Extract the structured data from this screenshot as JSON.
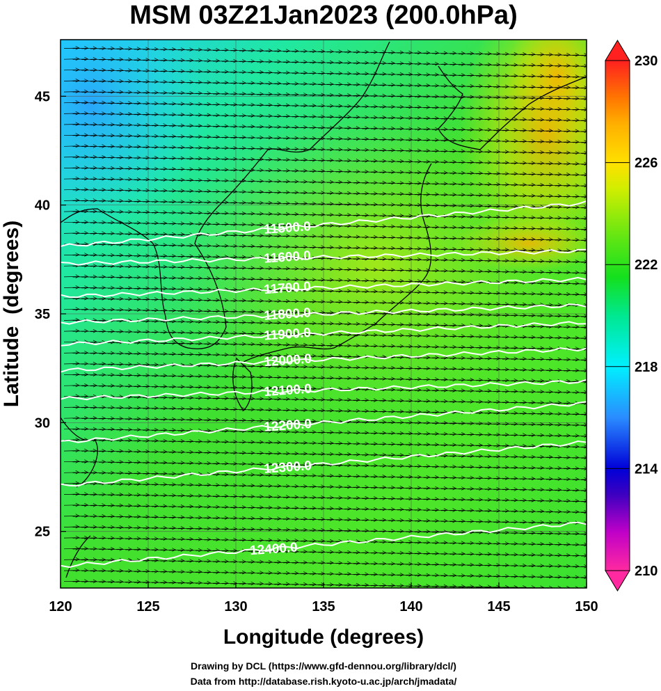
{
  "chart_data": {
    "type": "heatmap",
    "title": "MSM 03Z21Jan2023 (200.0hPa)",
    "xlabel": "Longitude (degrees)",
    "ylabel": "Latitude  (degrees)",
    "xlim": [
      120,
      150
    ],
    "ylim": [
      22.4,
      47.6
    ],
    "xticks": [
      120,
      125,
      130,
      135,
      140,
      145,
      150
    ],
    "yticks": [
      25,
      30,
      35,
      40,
      45
    ],
    "grid": true,
    "colorbar": {
      "ticks": [
        210,
        214,
        218,
        222,
        226,
        230
      ],
      "range": [
        210,
        230
      ],
      "stops": [
        {
          "v": 210,
          "color": "#ff2aa0"
        },
        {
          "v": 211.5,
          "color": "#c000c8"
        },
        {
          "v": 213,
          "color": "#3c00c0"
        },
        {
          "v": 214,
          "color": "#0000d8"
        },
        {
          "v": 216,
          "color": "#2a8cff"
        },
        {
          "v": 218,
          "color": "#00f0ff"
        },
        {
          "v": 220,
          "color": "#00e890"
        },
        {
          "v": 221.5,
          "color": "#14e01e"
        },
        {
          "v": 223,
          "color": "#5ee614"
        },
        {
          "v": 225,
          "color": "#d2ee00"
        },
        {
          "v": 226,
          "color": "#ffe000"
        },
        {
          "v": 227.5,
          "color": "#ffb000"
        },
        {
          "v": 228.5,
          "color": "#ff7800"
        },
        {
          "v": 230,
          "color": "#ff2020"
        }
      ]
    },
    "contours": [
      {
        "label": "11500.0",
        "lat_west": 38.1,
        "lat_east": 40.1,
        "label_lon": 131.6
      },
      {
        "label": "11600.0",
        "lat_west": 37.3,
        "lat_east": 37.9,
        "label_lon": 131.6
      },
      {
        "label": "11700.0",
        "lat_west": 35.8,
        "lat_east": 36.6,
        "label_lon": 131.6
      },
      {
        "label": "11800.0",
        "lat_west": 34.6,
        "lat_east": 35.4,
        "label_lon": 131.6
      },
      {
        "label": "11900.0",
        "lat_west": 33.6,
        "lat_east": 34.6,
        "label_lon": 131.6
      },
      {
        "label": "12000.0",
        "lat_west": 32.4,
        "lat_east": 33.4,
        "label_lon": 131.6
      },
      {
        "label": "12100.0",
        "lat_west": 31.1,
        "lat_east": 31.9,
        "label_lon": 131.6
      },
      {
        "label": "12200.0",
        "lat_west": 29.1,
        "lat_east": 30.9,
        "label_lon": 131.6
      },
      {
        "label": "12300.0",
        "lat_west": 27.1,
        "lat_east": 29.1,
        "label_lon": 131.6
      },
      {
        "label": "12400.0",
        "lat_west": 23.4,
        "lat_east": 25.4,
        "label_lon": 130.8
      }
    ],
    "wind": {
      "direction_deg": 80,
      "arrow_spacing_deg": 0.5
    }
  },
  "credits": {
    "line1": "Drawing by DCL (https://www.gfd-dennou.org/library/dcl/)",
    "line2": "Data from http://database.rish.kyoto-u.ac.jp/arch/jmadata/"
  }
}
